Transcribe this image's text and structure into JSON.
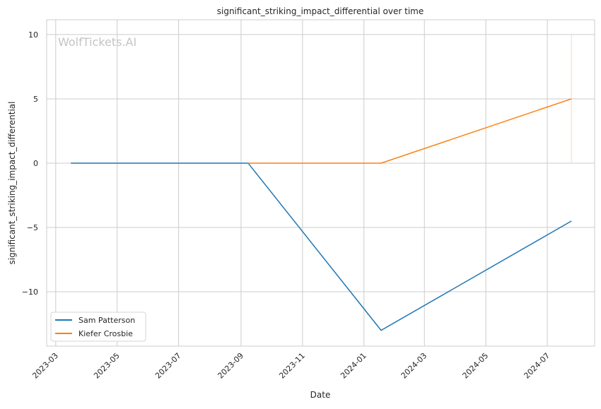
{
  "chart_data": {
    "type": "line",
    "title": "significant_striking_impact_differential over time",
    "xlabel": "Date",
    "ylabel": "significant_striking_impact_differential",
    "xlim": [
      "2023-02-20",
      "2024-08-17"
    ],
    "ylim": [
      -14.23,
      11.15
    ],
    "grid": true,
    "x_ticks": [
      "2023-03",
      "2023-05",
      "2023-07",
      "2023-09",
      "2023-11",
      "2024-01",
      "2024-03",
      "2024-05",
      "2024-07"
    ],
    "y_ticks": [
      10,
      5,
      0,
      -5,
      -10
    ],
    "y_tick_labels": [
      "10",
      "5",
      "0",
      "−5",
      "−10"
    ],
    "legend_position": "lower-left",
    "watermark": "WolfTickets.AI",
    "series": [
      {
        "name": "Sam Patterson",
        "color": "#1f77b4",
        "x": [
          "2023-03-16",
          "2023-09-08",
          "2024-01-18",
          "2024-07-25"
        ],
        "y": [
          0,
          0,
          -13,
          -4.5
        ]
      },
      {
        "name": "Kiefer Crosbie",
        "color": "#ff7f0e",
        "x": [
          "2023-09-08",
          "2024-01-18",
          "2024-07-25"
        ],
        "y": [
          0,
          0,
          5
        ]
      }
    ],
    "vline": {
      "x": "2024-07-25",
      "y_from": 0,
      "y_to": 10,
      "color": "#ffd8b0"
    }
  }
}
